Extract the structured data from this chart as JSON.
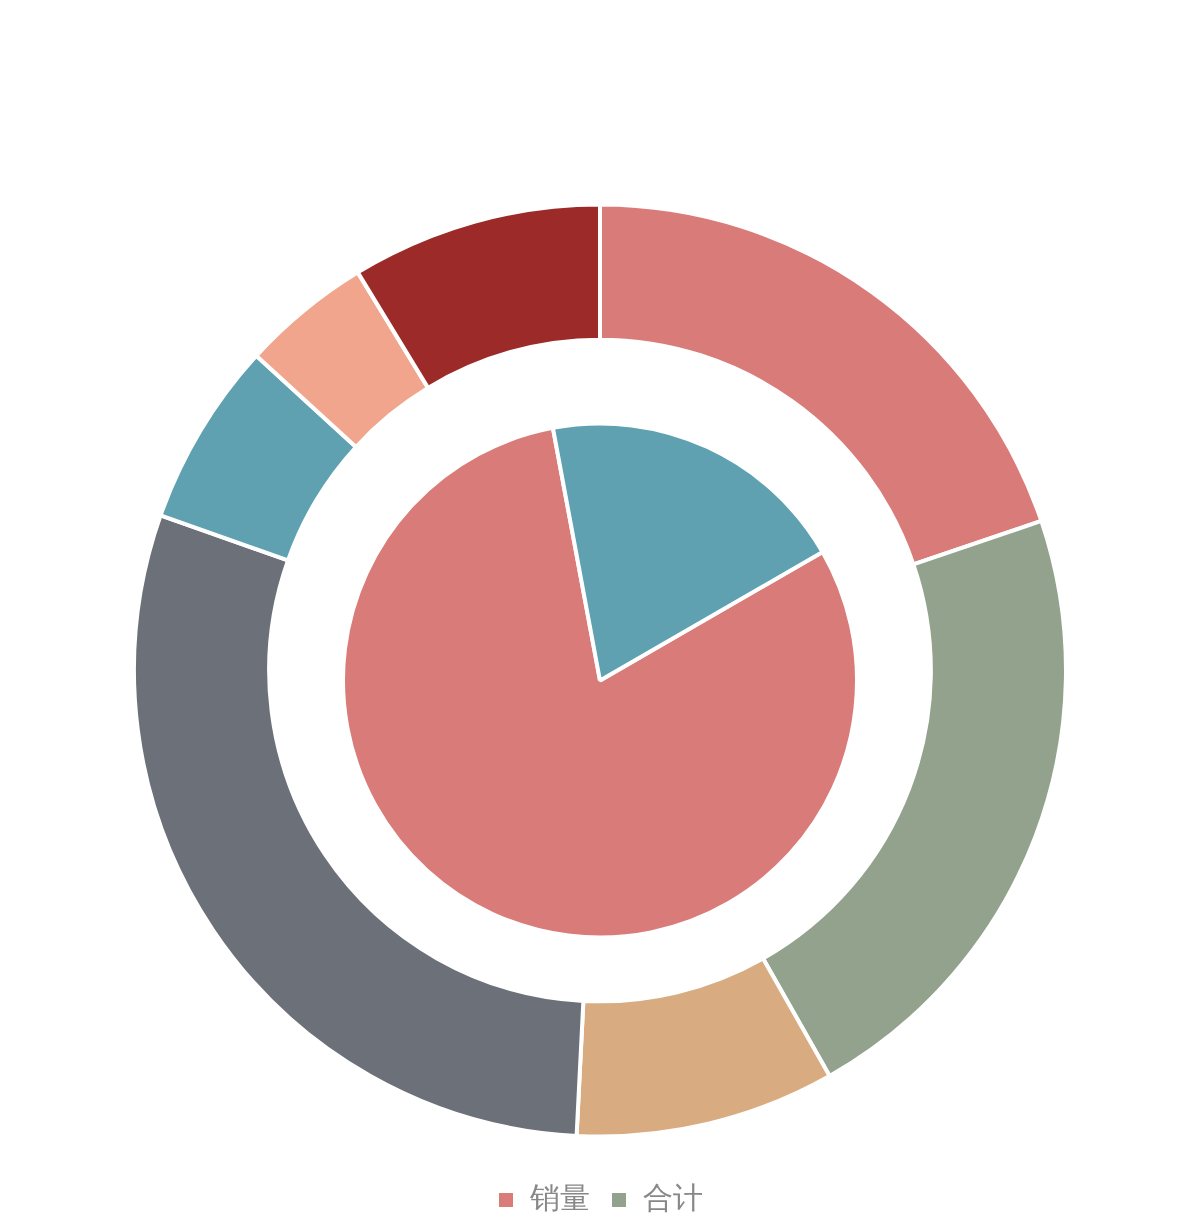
{
  "chart_data": [
    {
      "type": "donut",
      "categories": [
        "销量",
        "合计",
        null,
        null,
        null,
        null,
        null
      ],
      "values": [
        19.8,
        22.0,
        9.0,
        29.6,
        6.4,
        4.5,
        8.7
      ],
      "colors": [
        "#d97b78",
        "#93a28c",
        "#d8ac80",
        "#6c7078",
        "#5fa1b0",
        "#f0a58c",
        "#9b2a28"
      ],
      "legend": "bottom"
    },
    {
      "type": "pie",
      "categories": [
        null,
        null
      ],
      "values": [
        80.4,
        19.6
      ],
      "colors": [
        "#d97b78",
        "#5fa1b0"
      ]
    }
  ]
}
